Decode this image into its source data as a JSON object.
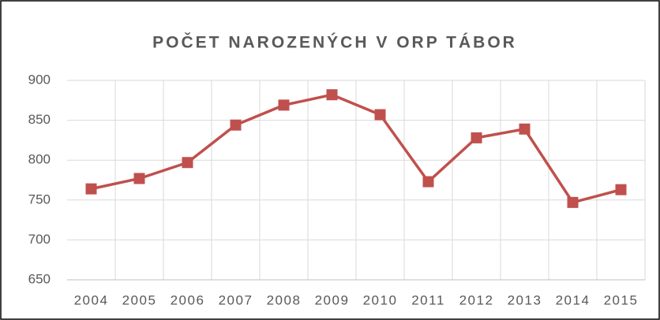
{
  "chart_data": {
    "type": "line",
    "title": "POČET NAROZENÝCH V ORP TÁBOR",
    "categories": [
      "2004",
      "2005",
      "2006",
      "2007",
      "2008",
      "2009",
      "2010",
      "2011",
      "2012",
      "2013",
      "2014",
      "2015"
    ],
    "series": [
      {
        "name": "Počet narozených",
        "color": "#c0504d",
        "values": [
          764,
          777,
          797,
          844,
          869,
          882,
          857,
          773,
          828,
          839,
          747,
          763
        ]
      }
    ],
    "ylim": [
      650,
      900
    ],
    "yticks": [
      650,
      700,
      750,
      800,
      850,
      900
    ],
    "grid": true
  }
}
